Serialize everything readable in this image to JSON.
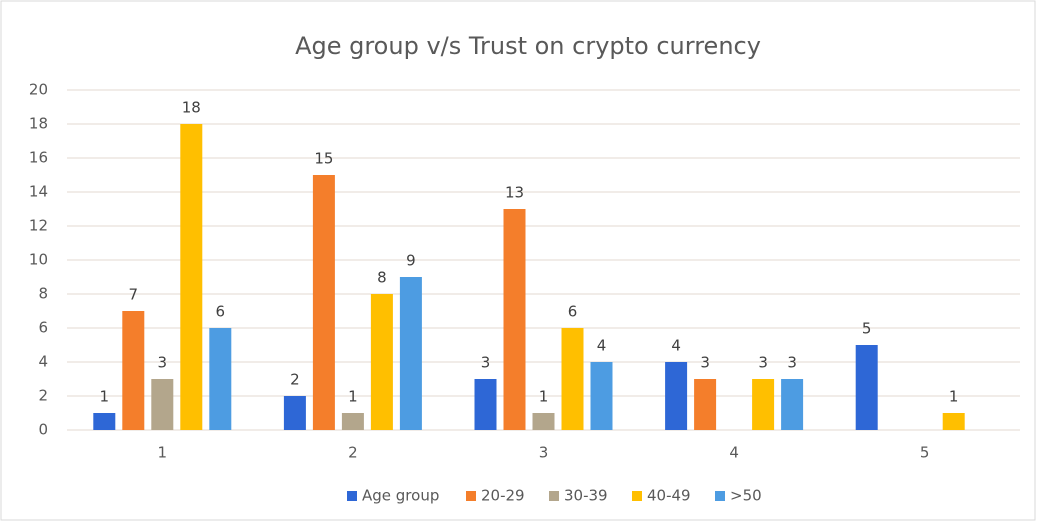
{
  "chart_data": {
    "type": "bar",
    "title": "Age group v/s Trust on crypto currency",
    "categories": [
      "1",
      "2",
      "3",
      "4",
      "5"
    ],
    "series": [
      {
        "name": "Age group",
        "color": "#2e67d6",
        "values": [
          1,
          2,
          3,
          4,
          5
        ]
      },
      {
        "name": "20-29",
        "color": "#f47e2b",
        "values": [
          7,
          15,
          13,
          3,
          null
        ]
      },
      {
        "name": "30-39",
        "color": "#b3a68c",
        "values": [
          3,
          1,
          1,
          null,
          null
        ]
      },
      {
        "name": "40-49",
        "color": "#ffbf00",
        "values": [
          18,
          8,
          6,
          3,
          1
        ]
      },
      {
        "name": ">50",
        "color": "#4d9ce2",
        "values": [
          6,
          9,
          4,
          3,
          null
        ]
      }
    ],
    "ylim": [
      0,
      20
    ],
    "yticks": [
      0,
      2,
      4,
      6,
      8,
      10,
      12,
      14,
      16,
      18,
      20
    ],
    "grid": true,
    "legend": "bottom"
  }
}
